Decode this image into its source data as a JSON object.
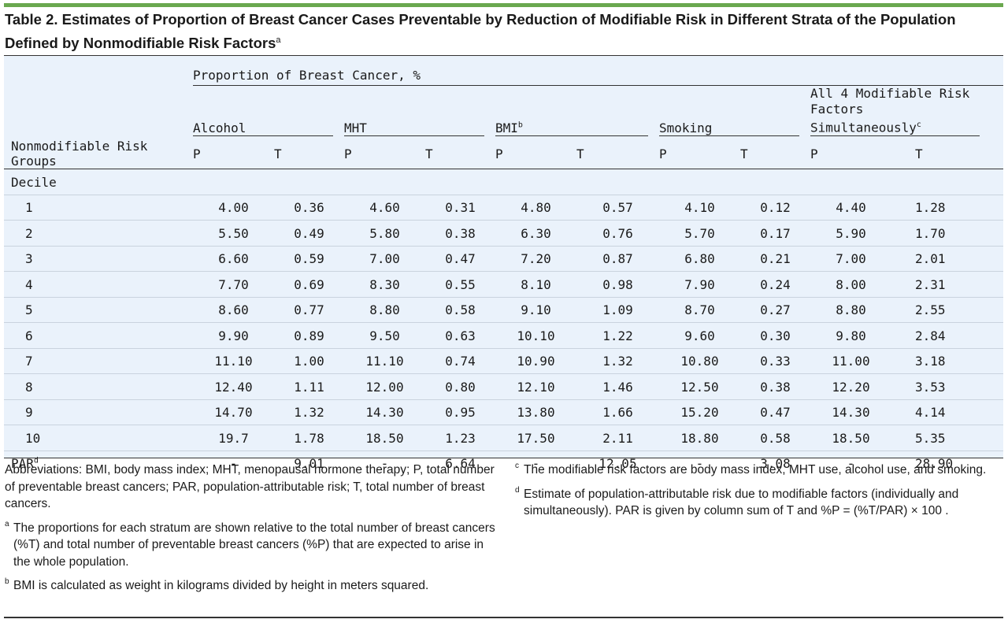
{
  "title": {
    "text": "Table 2. Estimates of Proportion of Breast Cancer Cases Preventable by Reduction of Modifiable Risk in Different Strata of the Population Defined by Nonmodifiable Risk Factors",
    "sup": "a"
  },
  "header": {
    "row_label": "Nonmodifiable Risk Groups",
    "spanner": "Proportion of Breast Cancer, %",
    "groups": [
      {
        "label": "Alcohol",
        "sup": ""
      },
      {
        "label": "MHT",
        "sup": ""
      },
      {
        "label": "BMI",
        "sup": "b"
      },
      {
        "label": "Smoking",
        "sup": ""
      },
      {
        "label": "All 4 Modifiable Risk Factors Simultaneously",
        "sup": "c"
      }
    ],
    "sub": [
      "P",
      "T",
      "P",
      "T",
      "P",
      "T",
      "P",
      "T",
      "P",
      "T"
    ]
  },
  "section_label": "Decile",
  "rows": [
    {
      "label": "1",
      "cells": [
        "4.00",
        "0.36",
        "4.60",
        "0.31",
        "4.80",
        "0.57",
        "4.10",
        "0.12",
        "4.40",
        "1.28"
      ]
    },
    {
      "label": "2",
      "cells": [
        "5.50",
        "0.49",
        "5.80",
        "0.38",
        "6.30",
        "0.76",
        "5.70",
        "0.17",
        "5.90",
        "1.70"
      ]
    },
    {
      "label": "3",
      "cells": [
        "6.60",
        "0.59",
        "7.00",
        "0.47",
        "7.20",
        "0.87",
        "6.80",
        "0.21",
        "7.00",
        "2.01"
      ]
    },
    {
      "label": "4",
      "cells": [
        "7.70",
        "0.69",
        "8.30",
        "0.55",
        "8.10",
        "0.98",
        "7.90",
        "0.24",
        "8.00",
        "2.31"
      ]
    },
    {
      "label": "5",
      "cells": [
        "8.60",
        "0.77",
        "8.80",
        "0.58",
        "9.10",
        "1.09",
        "8.70",
        "0.27",
        "8.80",
        "2.55"
      ]
    },
    {
      "label": "6",
      "cells": [
        "9.90",
        "0.89",
        "9.50",
        "0.63",
        "10.10",
        "1.22",
        "9.60",
        "0.30",
        "9.80",
        "2.84"
      ]
    },
    {
      "label": "7",
      "cells": [
        "11.10",
        "1.00",
        "11.10",
        "0.74",
        "10.90",
        "1.32",
        "10.80",
        "0.33",
        "11.00",
        "3.18"
      ]
    },
    {
      "label": "8",
      "cells": [
        "12.40",
        "1.11",
        "12.00",
        "0.80",
        "12.10",
        "1.46",
        "12.50",
        "0.38",
        "12.20",
        "3.53"
      ]
    },
    {
      "label": "9",
      "cells": [
        "14.70",
        "1.32",
        "14.30",
        "0.95",
        "13.80",
        "1.66",
        "15.20",
        "0.47",
        "14.30",
        "4.14"
      ]
    },
    {
      "label": "10",
      "cells": [
        "19.7",
        "1.78",
        "18.50",
        "1.23",
        "17.50",
        "2.11",
        "18.80",
        "0.58",
        "18.50",
        "5.35"
      ]
    }
  ],
  "par_row": {
    "label": "PAR",
    "sup": "d",
    "cells": [
      "-",
      "9.01",
      "-",
      "6.64",
      "-",
      "12.05",
      "-",
      "3.08",
      "-",
      "28.90"
    ]
  },
  "notes": {
    "abbreviations": "Abbreviations: BMI, body mass index; MHT, menopausal hormone therapy; P, total number of preventable breast cancers; PAR, population-attributable risk; T, total number of breast cancers.",
    "footnotes": [
      {
        "mark": "a",
        "text": "The proportions for each stratum are shown relative to the total number of breast cancers (%T) and total number of preventable breast cancers (%P) that are expected to arise in the whole population."
      },
      {
        "mark": "b",
        "text": "BMI is calculated as weight in kilograms divided by height in meters squared."
      },
      {
        "mark": "c",
        "text": "The modifiable risk factors are body mass index, MHT use, alcohol use, and smoking."
      },
      {
        "mark": "d",
        "text": "Estimate of population-attributable risk due to modifiable factors (individually and simultaneously). PAR is given by column sum of T and %P = (%T/PAR) × 100 ."
      }
    ]
  },
  "colors": {
    "accent": "#6aa84f",
    "table_bg": "#eaf2fb"
  }
}
